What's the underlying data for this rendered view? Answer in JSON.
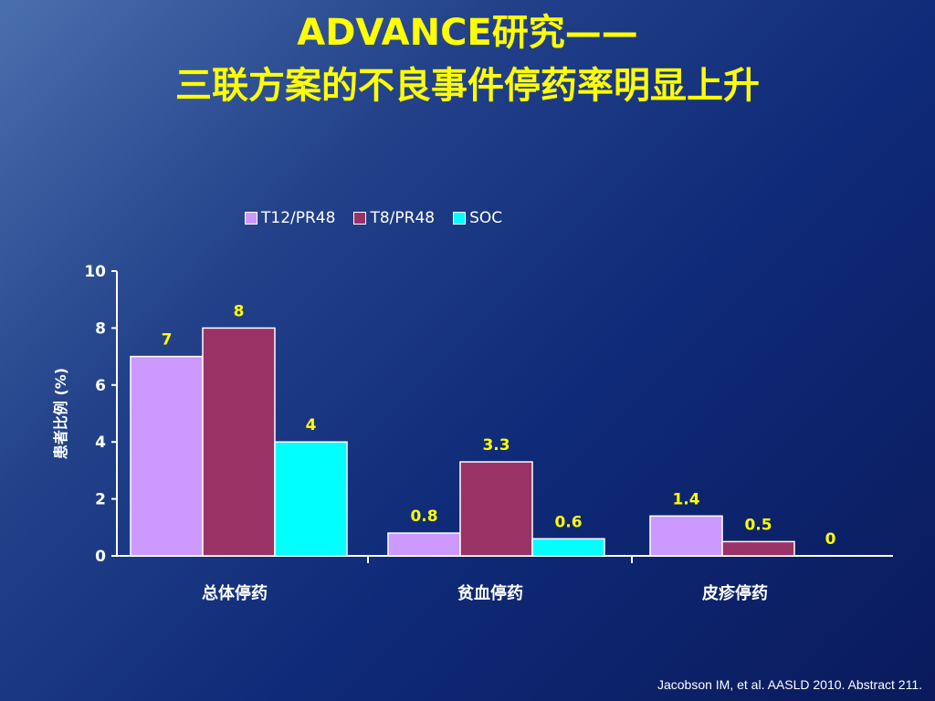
{
  "slide": {
    "title_line1": "ADVANCE研究——",
    "title_line2": "三联方案的不良事件停药率明显上升",
    "citation": "Jacobson IM, et al. AASLD 2010. Abstract 211."
  },
  "chart_data": {
    "type": "bar",
    "categories": [
      "总体停药",
      "贫血停药",
      "皮疹停药"
    ],
    "series": [
      {
        "name": "T12/PR48",
        "values": [
          7,
          0.8,
          1.4
        ],
        "labels": [
          "7",
          "0.8",
          "1.4"
        ],
        "color": "#cc99ff"
      },
      {
        "name": "T8/PR48",
        "values": [
          8,
          3.3,
          0.5
        ],
        "labels": [
          "8",
          "3.3",
          "0.5"
        ],
        "color": "#993366"
      },
      {
        "name": "SOC",
        "values": [
          4,
          0.6,
          0
        ],
        "labels": [
          "4",
          "0.6",
          "0"
        ],
        "color": "#00ffff"
      }
    ],
    "ylabel": "患者比例 (%)",
    "ylim": [
      0,
      10
    ],
    "yticks": [
      0,
      2,
      4,
      6,
      8,
      10
    ],
    "grid": false,
    "legend_position": "top"
  },
  "colors": {
    "title": "#ffff00",
    "data_labels": "#ffff00",
    "axis_text": "#ffffff",
    "background": "#0f2a78"
  }
}
